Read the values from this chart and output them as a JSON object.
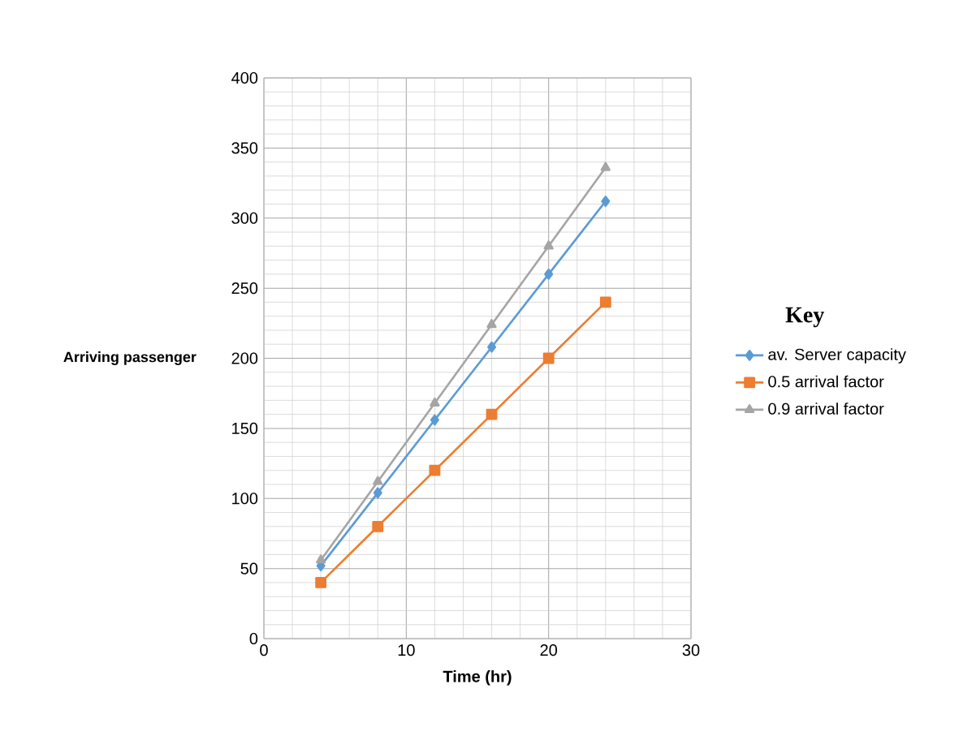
{
  "chart_data": {
    "type": "line",
    "xlabel": "Time (hr)",
    "ylabel": "Arriving passenger",
    "legend_title": "Key",
    "x": [
      4,
      8,
      12,
      16,
      20,
      24
    ],
    "series": [
      {
        "name": "av. Server capacity",
        "color": "#5b9bd5",
        "marker": "diamond",
        "values": [
          52,
          104,
          156,
          208,
          260,
          312
        ]
      },
      {
        "name": "0.5 arrival factor",
        "color": "#ed7d31",
        "marker": "square",
        "values": [
          40,
          80,
          120,
          160,
          200,
          240
        ]
      },
      {
        "name": "0.9 arrival factor",
        "color": "#a5a5a5",
        "marker": "triangle",
        "values": [
          56,
          112,
          168,
          224,
          280,
          336
        ]
      }
    ],
    "xlim": [
      0,
      30
    ],
    "ylim": [
      0,
      400
    ],
    "xticks": [
      0,
      10,
      20,
      30
    ],
    "yticks": [
      0,
      50,
      100,
      150,
      200,
      250,
      300,
      350,
      400
    ],
    "grid": true,
    "legend": "right"
  }
}
